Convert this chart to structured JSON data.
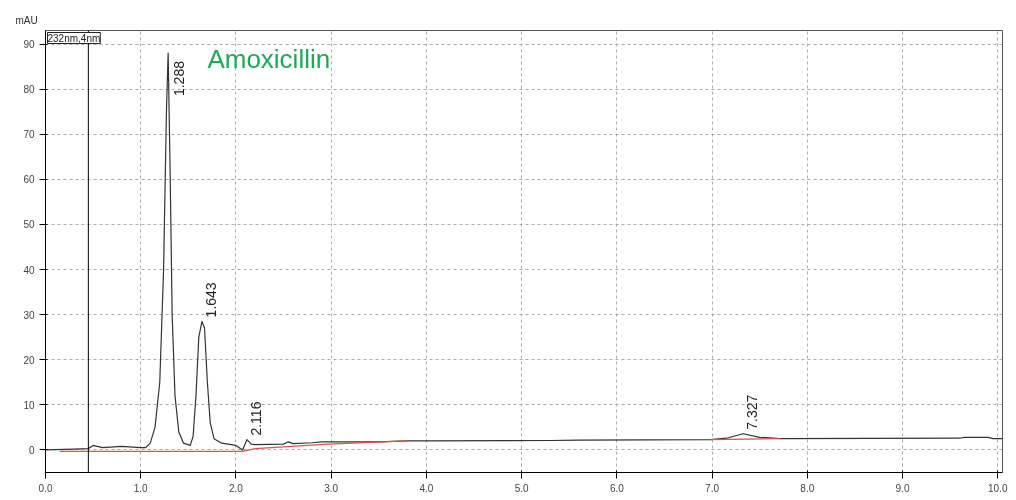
{
  "chart_data": {
    "type": "line",
    "title": "Amoxicillin",
    "ylabel": "mAU",
    "xlim": [
      0,
      10.05
    ],
    "ylim": [
      -5,
      93
    ],
    "xticks": [
      {
        "value": 0,
        "label": "0.0"
      },
      {
        "value": 1,
        "label": "1.0"
      },
      {
        "value": 2,
        "label": "2.0"
      },
      {
        "value": 3,
        "label": "3.0"
      },
      {
        "value": 4,
        "label": "4.0"
      },
      {
        "value": 5,
        "label": "5.0"
      },
      {
        "value": 6,
        "label": "6.0"
      },
      {
        "value": 7,
        "label": "7.0"
      },
      {
        "value": 8,
        "label": "8.0"
      },
      {
        "value": 9,
        "label": "9.0"
      },
      {
        "value": 10,
        "label": "10.0"
      }
    ],
    "yticks": [
      0,
      10,
      20,
      30,
      40,
      50,
      60,
      70,
      80,
      90
    ],
    "grid": true,
    "line_style": "solid",
    "series": [
      {
        "color": "#333333",
        "x": [
          0,
          0.3,
          0.45,
          0.5,
          0.6,
          0.8,
          1.0,
          1.05,
          1.1,
          1.15,
          1.2,
          1.24,
          1.27,
          1.288,
          1.31,
          1.33,
          1.36,
          1.4,
          1.45,
          1.52,
          1.55,
          1.58,
          1.61,
          1.643,
          1.67,
          1.7,
          1.73,
          1.77,
          1.85,
          2.0,
          2.07,
          2.116,
          2.16,
          2.2,
          2.5,
          2.55,
          2.6,
          2.8,
          2.9,
          3.5,
          3.8,
          4.0,
          5.3,
          5.6,
          6.98,
          7.15,
          7.327,
          7.5,
          7.72,
          9.6,
          9.65,
          9.9,
          9.95,
          10.05
        ],
        "values": [
          0,
          0.2,
          0.3,
          1.0,
          0.5,
          0.8,
          0.5,
          0.5,
          1.5,
          5,
          15,
          40,
          75,
          88,
          60,
          30,
          12,
          4,
          1.5,
          1.0,
          3,
          12,
          25,
          28.5,
          27,
          15,
          6,
          2.5,
          1.5,
          1.0,
          0,
          2.3,
          1.3,
          1.2,
          1.3,
          1.8,
          1.4,
          1.6,
          1.8,
          1.8,
          2.0,
          2.0,
          2.1,
          2.2,
          2.3,
          2.6,
          3.6,
          2.8,
          2.5,
          2.6,
          2.8,
          2.8,
          2.5,
          2.5
        ]
      },
      {
        "color": "#d9534f",
        "x": [
          0.15,
          2.07,
          2.2,
          2.97,
          3.8,
          5.0,
          6.98,
          7.72
        ],
        "values": [
          -0.3,
          -0.3,
          0.3,
          1.3,
          2.0,
          null,
          2.3,
          2.5
        ]
      }
    ],
    "ref_lines": [
      {
        "axis": "x",
        "value": 0.45,
        "label": null,
        "color": "#000000"
      }
    ],
    "annotations": [
      "232nm,4nm",
      {
        "text": "1.288",
        "x": 1.288,
        "y": 88
      },
      {
        "text": "1.643",
        "x": 1.643,
        "y": 28.5
      },
      {
        "text": "2.116",
        "x": 2.116,
        "y": 2.3
      },
      {
        "text": "7.327",
        "x": 7.327,
        "y": 3.6
      }
    ]
  }
}
